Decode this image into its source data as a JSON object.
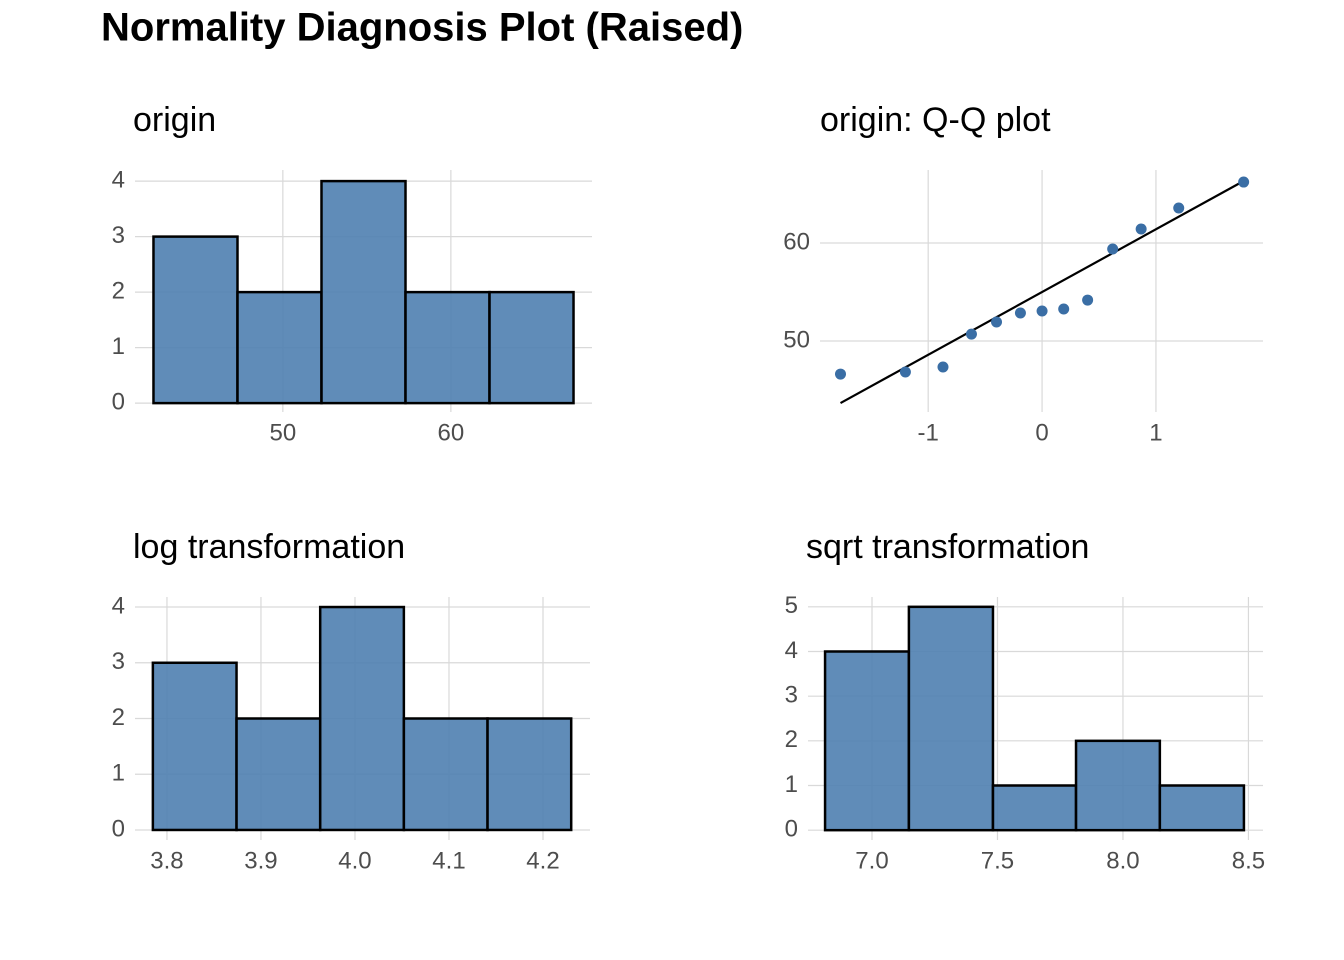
{
  "title": "Normality Diagnosis Plot (Raised)",
  "chart_data": [
    {
      "type": "histogram",
      "title": "origin",
      "bins": [
        42.3,
        47.3,
        52.3,
        57.3,
        62.3,
        67.3
      ],
      "values": [
        3,
        2,
        4,
        2,
        2
      ],
      "color": "#4f7fb0",
      "xlim": [
        41.2,
        68.4
      ],
      "xticks": [
        50,
        60
      ],
      "ylim": [
        -0.16,
        4.2
      ],
      "yticks": [
        0,
        1,
        2,
        3,
        4
      ],
      "grid": true
    },
    {
      "type": "scatter",
      "title": "origin: Q-Q plot",
      "x": [
        -1.77,
        -1.2,
        -0.87,
        -0.62,
        -0.4,
        -0.19,
        0,
        0.19,
        0.4,
        0.62,
        0.87,
        1.2,
        1.77
      ],
      "values": [
        46.63,
        46.84,
        47.35,
        50.71,
        51.94,
        52.86,
        53.06,
        53.27,
        54.18,
        59.39,
        61.43,
        63.57,
        66.22
      ],
      "color": "#3a6ea5",
      "reference_line": {
        "x": [
          -1.77,
          1.77
        ],
        "y": [
          43.67,
          66.33
        ],
        "color": "#000000"
      },
      "xlim": [
        -1.95,
        1.94
      ],
      "xticks": [
        -1,
        0,
        1
      ],
      "ylim": [
        42.76,
        67.45
      ],
      "yticks": [
        50,
        60
      ],
      "grid": true
    },
    {
      "type": "histogram",
      "title": "log transformation",
      "bins": [
        3.785,
        3.874,
        3.963,
        4.052,
        4.141,
        4.23
      ],
      "values": [
        3,
        2,
        4,
        2,
        2
      ],
      "color": "#4f7fb0",
      "xlim": [
        3.766,
        4.25
      ],
      "xticks": [
        3.8,
        3.9,
        {
          "value": 4,
          "label": "4.0"
        },
        4.1,
        4.2
      ],
      "ylim": [
        -0.18,
        4.18
      ],
      "yticks": [
        0,
        1,
        2,
        3,
        4
      ],
      "grid": true
    },
    {
      "type": "histogram",
      "title": "sqrt transformation",
      "bins": [
        6.813,
        7.147,
        7.482,
        7.813,
        8.147,
        8.482
      ],
      "values": [
        4,
        5,
        1,
        2,
        1
      ],
      "color": "#4f7fb0",
      "xlim": [
        6.745,
        8.558
      ],
      "xticks": [
        {
          "value": 7,
          "label": "7.0"
        },
        7.5,
        {
          "value": 8,
          "label": "8.0"
        },
        8.5
      ],
      "ylim": [
        -0.22,
        5.22
      ],
      "yticks": [
        0,
        1,
        2,
        3,
        4,
        5
      ],
      "grid": true
    }
  ]
}
